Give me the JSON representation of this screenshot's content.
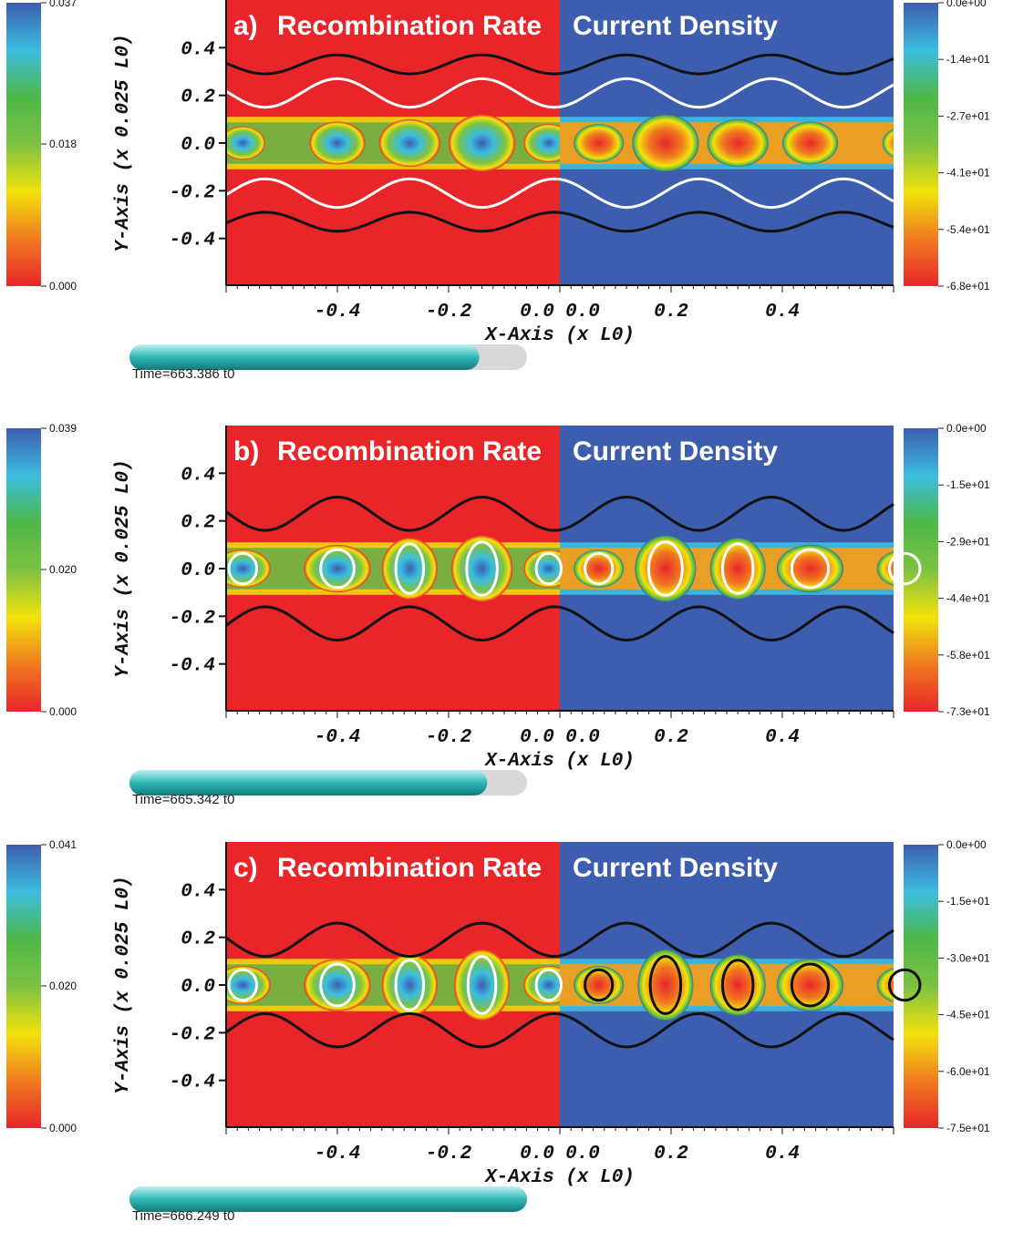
{
  "colors": {
    "recombination_bg": "#e8262a",
    "current_bg": "#3d5daf",
    "contour_white": "#ffffff",
    "contour_black": "#111111",
    "progress_fill": "#2fb8b8",
    "progress_track": "#d8d8d8"
  },
  "colormap": [
    "#e8262a",
    "#f07a1f",
    "#f2e20c",
    "#7ec242",
    "#4db848",
    "#3bbde0",
    "#3d5daf"
  ],
  "panels": [
    {
      "label": "a)",
      "left_title": "Recombination Rate",
      "right_title": "Current Density",
      "xlabel": "X-Axis (x L0)",
      "ylabel": "Y-Axis (x 0.025 L0)",
      "xticks": [
        "-0.4",
        "-0.2",
        "0.0",
        "0.0",
        "0.2",
        "0.4"
      ],
      "yticks": [
        "0.4",
        "0.2",
        "0.0",
        "-0.2",
        "-0.4"
      ],
      "left_colorbar": {
        "max": "0.037",
        "mid": "0.018",
        "min": "0.000"
      },
      "right_colorbar": {
        "ticks": [
          "0.0e+00",
          "-1.4e+01",
          "-2.7e+01",
          "-4.1e+01",
          "-5.4e+01",
          "-6.8e+01"
        ]
      },
      "time": "Time=663.386 t0",
      "progress": 0.88
    },
    {
      "label": "b)",
      "left_title": "Recombination Rate",
      "right_title": "Current Density",
      "xlabel": "X-Axis (x L0)",
      "ylabel": "Y-Axis (x 0.025 L0)",
      "xticks": [
        "-0.4",
        "-0.2",
        "0.0",
        "0.0",
        "0.2",
        "0.4"
      ],
      "yticks": [
        "0.4",
        "0.2",
        "0.0",
        "-0.2",
        "-0.4"
      ],
      "left_colorbar": {
        "max": "0.039",
        "mid": "0.020",
        "min": "0.000"
      },
      "right_colorbar": {
        "ticks": [
          "0.0e+00",
          "-1.5e+01",
          "-2.9e+01",
          "-4.4e+01",
          "-5.8e+01",
          "-7.3e+01"
        ]
      },
      "time": "Time=665.342 t0",
      "progress": 0.9
    },
    {
      "label": "c)",
      "left_title": "Recombination Rate",
      "right_title": "Current Density",
      "xlabel": "X-Axis (x L0)",
      "ylabel": "Y-Axis (x 0.025 L0)",
      "xticks": [
        "-0.4",
        "-0.2",
        "0.0",
        "0.0",
        "0.2",
        "0.4"
      ],
      "yticks": [
        "0.4",
        "0.2",
        "0.0",
        "-0.2",
        "-0.4"
      ],
      "left_colorbar": {
        "max": "0.041",
        "mid": "0.020",
        "min": "0.000"
      },
      "right_colorbar": {
        "ticks": [
          "0.0e+00",
          "-1.5e+01",
          "-3.0e+01",
          "-4.5e+01",
          "-6.0e+01",
          "-7.5e+01"
        ]
      },
      "time": "Time=666.249 t0",
      "progress": 1.0
    }
  ],
  "chart_data": {
    "type": "heatmap",
    "x_range": [
      -0.6,
      0.6
    ],
    "y_range": [
      -0.6,
      0.6
    ],
    "note_fields": [
      "recombination rate (left half)",
      "current density (right half)"
    ]
  }
}
